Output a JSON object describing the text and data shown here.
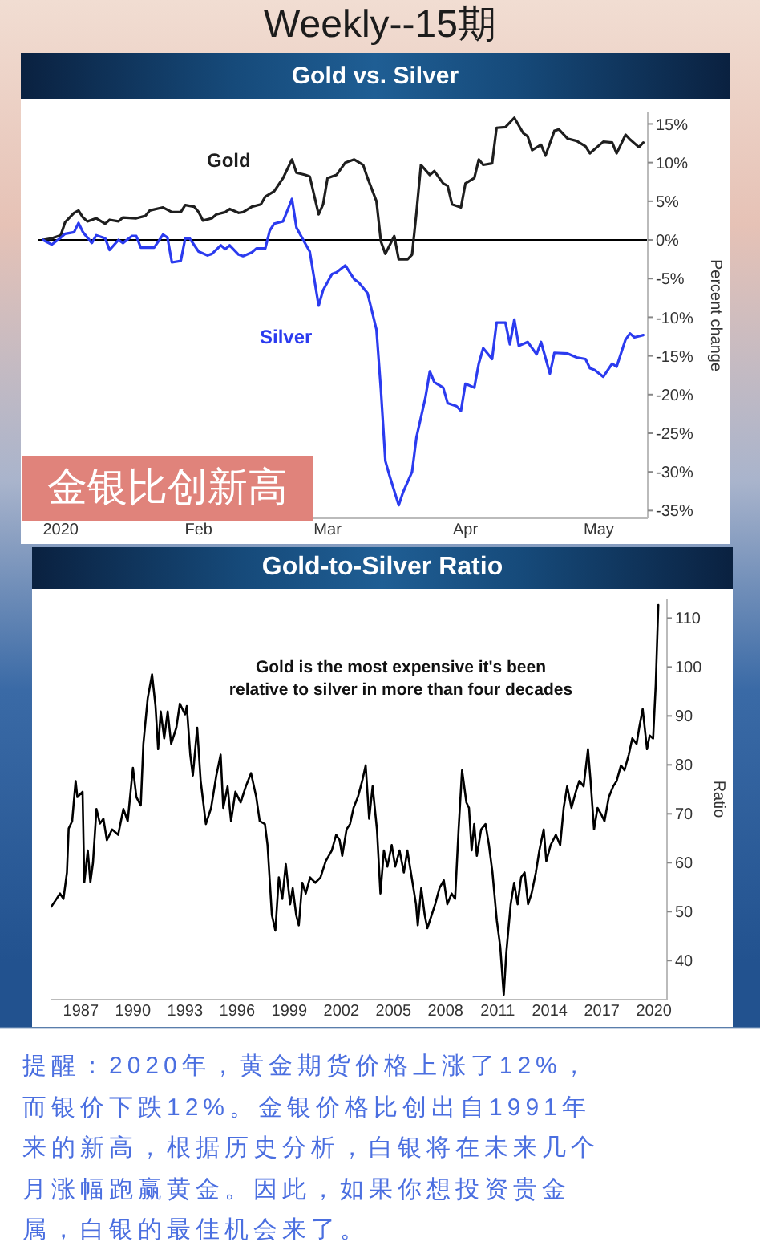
{
  "chart_data": [
    {
      "type": "line",
      "title": "Gold vs. Silver",
      "ylabel": "Percent change",
      "series": [
        {
          "name": "Gold",
          "color": "#1e1e1e",
          "x": [
            "2019-12-28",
            "2019-12-30",
            "2020-01-01",
            "2020-01-02",
            "2020-01-04",
            "2020-01-05",
            "2020-01-06",
            "2020-01-07",
            "2020-01-09",
            "2020-01-11",
            "2020-01-12",
            "2020-01-14",
            "2020-01-15",
            "2020-01-18",
            "2020-01-20",
            "2020-01-21",
            "2020-01-24",
            "2020-01-26",
            "2020-01-28",
            "2020-01-29",
            "2020-01-31",
            "2020-02-01",
            "2020-02-02",
            "2020-02-04",
            "2020-02-05",
            "2020-02-07",
            "2020-02-08",
            "2020-02-10",
            "2020-02-11",
            "2020-02-13",
            "2020-02-15",
            "2020-02-16",
            "2020-02-18",
            "2020-02-20",
            "2020-02-22",
            "2020-02-23",
            "2020-02-25",
            "2020-02-26",
            "2020-02-28",
            "2020-02-29",
            "2020-03-01",
            "2020-03-03",
            "2020-03-05",
            "2020-03-07",
            "2020-03-09",
            "2020-03-10",
            "2020-03-12",
            "2020-03-13",
            "2020-03-14",
            "2020-03-16",
            "2020-03-17",
            "2020-03-19",
            "2020-03-20",
            "2020-03-21",
            "2020-03-22",
            "2020-03-24",
            "2020-03-25",
            "2020-03-27",
            "2020-03-28",
            "2020-03-29",
            "2020-03-31",
            "2020-04-01",
            "2020-04-03",
            "2020-04-04",
            "2020-04-05",
            "2020-04-07",
            "2020-04-08",
            "2020-04-10",
            "2020-04-12",
            "2020-04-14",
            "2020-04-15",
            "2020-04-16",
            "2020-04-18",
            "2020-04-19",
            "2020-04-21",
            "2020-04-22",
            "2020-04-24",
            "2020-04-26",
            "2020-04-28",
            "2020-04-29",
            "2020-05-02",
            "2020-05-04",
            "2020-05-05",
            "2020-05-07",
            "2020-05-08",
            "2020-05-10",
            "2020-05-11"
          ],
          "values": [
            0,
            0.2,
            0.6,
            2.3,
            3.5,
            3.8,
            2.9,
            2.4,
            2.8,
            2.1,
            2.6,
            2.4,
            2.9,
            2.8,
            3.1,
            3.8,
            4.2,
            3.6,
            3.6,
            4.5,
            4.3,
            3.6,
            2.5,
            2.8,
            3.3,
            3.6,
            4,
            3.5,
            3.6,
            4.3,
            4.6,
            5.6,
            6.3,
            8,
            10.4,
            8.7,
            8.4,
            8.2,
            3.3,
            4.6,
            8,
            8.4,
            10,
            10.4,
            9.7,
            8,
            5,
            -0.2,
            -1.8,
            0.5,
            -2.5,
            -2.5,
            -1.9,
            3.6,
            9.7,
            8.4,
            8.9,
            7.3,
            7,
            4.6,
            4.2,
            7.3,
            8,
            10.4,
            9.7,
            9.9,
            14.5,
            14.6,
            15.8,
            13.8,
            13.4,
            11.6,
            12.3,
            10.9,
            14.1,
            14.3,
            13.1,
            12.8,
            12.1,
            11.2,
            12.7,
            12.6,
            11.2,
            13.6,
            13,
            12,
            12.6
          ]
        },
        {
          "name": "Silver",
          "color": "#2b3bef",
          "x": [
            "2019-12-28",
            "2019-12-30",
            "2020-01-01",
            "2020-01-02",
            "2020-01-04",
            "2020-01-05",
            "2020-01-06",
            "2020-01-08",
            "2020-01-09",
            "2020-01-11",
            "2020-01-12",
            "2020-01-14",
            "2020-01-15",
            "2020-01-17",
            "2020-01-18",
            "2020-01-19",
            "2020-01-22",
            "2020-01-24",
            "2020-01-25",
            "2020-01-26",
            "2020-01-28",
            "2020-01-29",
            "2020-01-30",
            "2020-02-01",
            "2020-02-03",
            "2020-02-04",
            "2020-02-06",
            "2020-02-07",
            "2020-02-08",
            "2020-02-10",
            "2020-02-11",
            "2020-02-13",
            "2020-02-14",
            "2020-02-16",
            "2020-02-17",
            "2020-02-18",
            "2020-02-20",
            "2020-02-22",
            "2020-02-23",
            "2020-02-25",
            "2020-02-26",
            "2020-02-28",
            "2020-02-29",
            "2020-03-02",
            "2020-03-03",
            "2020-03-05",
            "2020-03-07",
            "2020-03-08",
            "2020-03-10",
            "2020-03-12",
            "2020-03-13",
            "2020-03-14",
            "2020-03-15",
            "2020-03-17",
            "2020-03-18",
            "2020-03-20",
            "2020-03-21",
            "2020-03-23",
            "2020-03-24",
            "2020-03-25",
            "2020-03-27",
            "2020-03-28",
            "2020-03-30",
            "2020-03-31",
            "2020-04-01",
            "2020-04-03",
            "2020-04-04",
            "2020-04-05",
            "2020-04-07",
            "2020-04-08",
            "2020-04-10",
            "2020-04-11",
            "2020-04-12",
            "2020-04-13",
            "2020-04-15",
            "2020-04-17",
            "2020-04-18",
            "2020-04-20",
            "2020-04-21",
            "2020-04-24",
            "2020-04-26",
            "2020-04-28",
            "2020-04-29",
            "2020-04-30",
            "2020-05-02",
            "2020-05-04",
            "2020-05-05",
            "2020-05-07",
            "2020-05-08",
            "2020-05-09",
            "2020-05-11"
          ],
          "values": [
            0,
            -0.6,
            0.3,
            0.8,
            1,
            2.2,
            1,
            -0.4,
            0.6,
            0.2,
            -1.3,
            0,
            -0.4,
            0.5,
            0.5,
            -1,
            -1,
            0.7,
            0.3,
            -2.9,
            -2.7,
            0.2,
            0.2,
            -1.5,
            -2,
            -1.8,
            -0.7,
            -1.2,
            -0.7,
            -1.9,
            -2.1,
            -1.6,
            -1.1,
            -1.1,
            1.2,
            2.1,
            2.4,
            5.3,
            1.6,
            -0.5,
            -1.5,
            -8.5,
            -6.5,
            -4.4,
            -4.2,
            -3.3,
            -5.1,
            -5.5,
            -6.9,
            -11.6,
            -19.4,
            -28.6,
            -30.6,
            -34.3,
            -32.6,
            -30,
            -25.5,
            -20.4,
            -17,
            -18.4,
            -19.1,
            -21.1,
            -21.5,
            -22.1,
            -18.6,
            -19.1,
            -16,
            -14,
            -15.4,
            -10.7,
            -10.7,
            -13.5,
            -10.3,
            -13.7,
            -13.2,
            -14.8,
            -13.2,
            -17.3,
            -14.6,
            -14.7,
            -15.2,
            -15.4,
            -16.6,
            -16.8,
            -17.7,
            -16,
            -16.4,
            -12.9,
            -12.1,
            -12.6,
            -12.3
          ]
        }
      ],
      "xlim": [
        "2019-12-27",
        "2020-05-12"
      ],
      "xticks": [
        {
          "value": "2020-01-01",
          "label": "2020"
        },
        {
          "value": "2020-02-01",
          "label": "Feb"
        },
        {
          "value": "2020-03-01",
          "label": "Mar"
        },
        {
          "value": "2020-04-01",
          "label": "Apr"
        },
        {
          "value": "2020-05-01",
          "label": "May"
        }
      ],
      "ylim": [
        -36,
        16.5
      ],
      "yticks": [
        {
          "value": 15,
          "label": "15%"
        },
        {
          "value": 10,
          "label": "10%"
        },
        {
          "value": 5,
          "label": "5%"
        },
        {
          "value": 0,
          "label": "0%"
        },
        {
          "value": -5,
          "label": "-5%"
        },
        {
          "value": -10,
          "label": "-10%"
        },
        {
          "value": -15,
          "label": "-15%"
        },
        {
          "value": -20,
          "label": "-20%"
        },
        {
          "value": -25,
          "label": "-25%"
        },
        {
          "value": -30,
          "label": "-30%"
        },
        {
          "value": -35,
          "label": "-35%"
        }
      ],
      "ref_lines": [
        {
          "axis": "y",
          "value": 0,
          "color": "#000000"
        }
      ],
      "annotations": [
        "Weekly--15期",
        "金银比创新高"
      ]
    },
    {
      "type": "line",
      "title": "Gold-to-Silver Ratio",
      "ylabel": "Ratio",
      "color": "#000000",
      "x": [
        1985.3,
        1985.6,
        1985.8,
        1986.0,
        1986.2,
        1986.3,
        1986.5,
        1986.7,
        1986.8,
        1987.1,
        1987.2,
        1987.4,
        1987.55,
        1987.7,
        1987.9,
        1988.1,
        1988.3,
        1988.5,
        1988.8,
        1989.15,
        1989.45,
        1989.7,
        1990.0,
        1990.2,
        1990.45,
        1990.6,
        1990.85,
        1991.1,
        1991.3,
        1991.45,
        1991.6,
        1991.8,
        1992.0,
        1992.2,
        1992.5,
        1992.7,
        1993.0,
        1993.1,
        1993.3,
        1993.45,
        1993.7,
        1993.9,
        1994.05,
        1994.2,
        1994.5,
        1994.8,
        1995.05,
        1995.2,
        1995.45,
        1995.65,
        1995.9,
        1996.2,
        1996.5,
        1996.8,
        1997.1,
        1997.3,
        1997.6,
        1997.75,
        1998.0,
        1998.2,
        1998.4,
        1998.6,
        1998.8,
        1999.05,
        1999.2,
        1999.4,
        1999.55,
        1999.75,
        1999.95,
        2000.2,
        2000.5,
        2000.8,
        2001.1,
        2001.45,
        2001.7,
        2001.9,
        2002.05,
        2002.3,
        2002.5,
        2002.7,
        2002.95,
        2003.2,
        2003.4,
        2003.6,
        2003.8,
        2004.05,
        2004.25,
        2004.45,
        2004.65,
        2004.9,
        2005.1,
        2005.35,
        2005.6,
        2005.8,
        2006.05,
        2006.3,
        2006.4,
        2006.6,
        2006.8,
        2006.95,
        2007.2,
        2007.4,
        2007.65,
        2007.9,
        2008.1,
        2008.35,
        2008.55,
        2008.75,
        2008.95,
        2009.2,
        2009.35,
        2009.5,
        2009.65,
        2009.8,
        2010.05,
        2010.3,
        2010.5,
        2010.7,
        2010.95,
        2011.15,
        2011.35,
        2011.5,
        2011.75,
        2011.95,
        2012.15,
        2012.35,
        2012.55,
        2012.75,
        2012.95,
        2013.2,
        2013.4,
        2013.65,
        2013.8,
        2014.05,
        2014.35,
        2014.6,
        2014.8,
        2015.0,
        2015.25,
        2015.5,
        2015.7,
        2015.95,
        2016.2,
        2016.35,
        2016.55,
        2016.75,
        2016.95,
        2017.15,
        2017.4,
        2017.65,
        2017.85,
        2018.1,
        2018.3,
        2018.55,
        2018.75,
        2019.0,
        2019.15,
        2019.35,
        2019.6,
        2019.75,
        2019.95,
        2020.1,
        2020.25
      ],
      "values": [
        51,
        52.6,
        53.7,
        52.6,
        58,
        67,
        68.5,
        76.7,
        73.4,
        74.5,
        56,
        62.5,
        56,
        60,
        71,
        68,
        69,
        64.6,
        66.8,
        65.7,
        71,
        68.5,
        79.4,
        73.4,
        71.7,
        84.3,
        93.6,
        98.5,
        92,
        83.2,
        90.9,
        85.4,
        90.9,
        84.3,
        87.6,
        92.5,
        90.3,
        92,
        82.1,
        77.8,
        87.6,
        76.7,
        72.3,
        67.9,
        71.2,
        77.8,
        82.1,
        71.2,
        75.6,
        68.5,
        74.5,
        72.3,
        75.6,
        78.3,
        73.4,
        68.5,
        67.9,
        63.6,
        49.3,
        46.1,
        57,
        52.6,
        59.7,
        51.5,
        54.8,
        49.3,
        47.2,
        55.9,
        53.7,
        57,
        55.9,
        57,
        60.3,
        62.5,
        65.7,
        64.6,
        61.4,
        66.8,
        67.9,
        71.2,
        73.4,
        76.7,
        79.9,
        69,
        75.6,
        66.8,
        53.7,
        62.5,
        59.2,
        63.6,
        59.2,
        62.5,
        58,
        62.5,
        57,
        51.5,
        47.2,
        54.8,
        49.3,
        46.6,
        49.3,
        51.5,
        54.8,
        56.4,
        51.5,
        53.7,
        52.6,
        66.8,
        78.9,
        72.3,
        71.2,
        62.5,
        67.9,
        61.4,
        66.8,
        67.9,
        63.6,
        58,
        48.2,
        42.8,
        33,
        41.7,
        51.5,
        55.9,
        51.5,
        57,
        58,
        51.5,
        53.7,
        58,
        62.5,
        66.8,
        60.3,
        63.6,
        65.7,
        63.6,
        71.2,
        75.6,
        71.2,
        74.5,
        76.7,
        75.6,
        83.2,
        76.7,
        66.8,
        71.2,
        70,
        68.5,
        73.4,
        75.6,
        76.7,
        79.9,
        78.9,
        82.1,
        85.4,
        84.3,
        87.6,
        91.4,
        83.2,
        86,
        85.4,
        96.3,
        112.7
      ],
      "xlim": [
        1985.3,
        2020.75
      ],
      "xticks": [
        1987,
        1990,
        1993,
        1996,
        1999,
        2002,
        2005,
        2008,
        2011,
        2014,
        2017,
        2020
      ],
      "ylim": [
        32,
        114
      ],
      "yticks": [
        40,
        50,
        60,
        70,
        80,
        90,
        100,
        110
      ],
      "annotations": [
        "Gold is the most expensive it's been\nrelative to silver in more than four decades",
        "提醒：2020年，黄金期货价格上涨了12%，而银价下跌12%。金银价格比创出自1991年来的新高，根据历史分析，白银将在未来几个月涨幅跑赢黄金。因此，如果你想投资贵金属，白银的最佳机会来了。"
      ]
    }
  ]
}
